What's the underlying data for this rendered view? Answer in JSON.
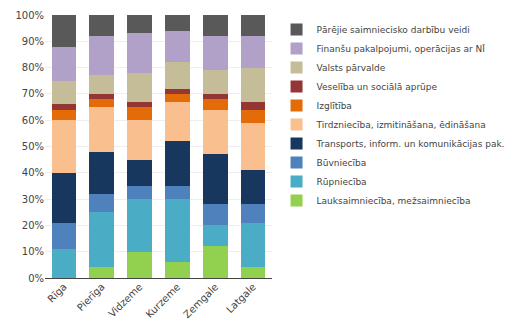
{
  "chart_data": {
    "type": "bar",
    "stacked": true,
    "categories": [
      "Rīga",
      "Pierīga",
      "Vidzeme",
      "Kurzeme",
      "Zemgale",
      "Latgale"
    ],
    "series": [
      {
        "name": "Lauksaimniecība, mežsaimniecība",
        "color": "#92d050",
        "values": [
          0,
          4,
          10,
          6,
          12,
          4
        ]
      },
      {
        "name": "Rūpniecība",
        "color": "#4bacc6",
        "values": [
          11,
          21,
          20,
          24,
          8,
          17
        ]
      },
      {
        "name": "Būvniecība",
        "color": "#4f81bd",
        "values": [
          10,
          7,
          5,
          5,
          8,
          7
        ]
      },
      {
        "name": "Transports, inform. un komunikācijas pak.",
        "color": "#17375e",
        "values": [
          19,
          16,
          10,
          17,
          19,
          13
        ]
      },
      {
        "name": "Tirdzniecība, izmitināšana, ēdināšana",
        "color": "#fabf8f",
        "values": [
          20,
          17,
          15,
          15,
          17,
          18
        ]
      },
      {
        "name": "Izglītība",
        "color": "#e36c09",
        "values": [
          4,
          3,
          5,
          3,
          4,
          5
        ]
      },
      {
        "name": "Veselība un sociālā aprūpe",
        "color": "#943634",
        "values": [
          2,
          2,
          2,
          2,
          2,
          3
        ]
      },
      {
        "name": "Valsts pārvalde",
        "color": "#c4bd97",
        "values": [
          9,
          7,
          11,
          10,
          9,
          13
        ]
      },
      {
        "name": "Finanšu pakalpojumi, operācijas ar NĪ",
        "color": "#b1a0c7",
        "values": [
          13,
          15,
          15,
          12,
          13,
          12
        ]
      },
      {
        "name": "Pārējie saimniecisko darbību veidi",
        "color": "#595959",
        "values": [
          12,
          8,
          7,
          6,
          8,
          8
        ]
      }
    ],
    "ylim": [
      0,
      100
    ],
    "yticks": [
      {
        "value": 0,
        "label": "0%"
      },
      {
        "value": 10,
        "label": "10%"
      },
      {
        "value": 20,
        "label": "20%"
      },
      {
        "value": 30,
        "label": "30%"
      },
      {
        "value": 40,
        "label": "40%"
      },
      {
        "value": 50,
        "label": "50%"
      },
      {
        "value": 60,
        "label": "60%"
      },
      {
        "value": 70,
        "label": "70%"
      },
      {
        "value": 80,
        "label": "80%"
      },
      {
        "value": 90,
        "label": "90%"
      },
      {
        "value": 100,
        "label": "100%"
      }
    ],
    "grid": true,
    "legend": "right"
  }
}
